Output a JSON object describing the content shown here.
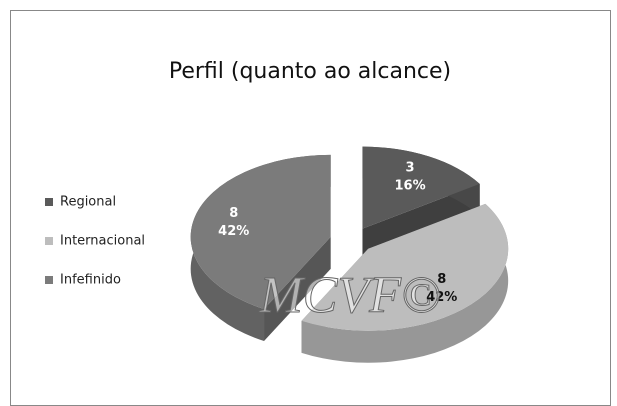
{
  "chart_data": {
    "type": "pie",
    "title": "Perfil (quanto ao alcance)",
    "categories": [
      "Regional",
      "Internacional",
      "Infefinido"
    ],
    "values": [
      3,
      8,
      8
    ],
    "percentages": [
      16,
      42,
      42
    ],
    "percentage_labels": [
      "16%",
      "42%",
      "42%"
    ],
    "colors": [
      "#5a5a5a",
      "#bdbdbd",
      "#7b7b7b"
    ],
    "watermark": "MCVF©"
  }
}
